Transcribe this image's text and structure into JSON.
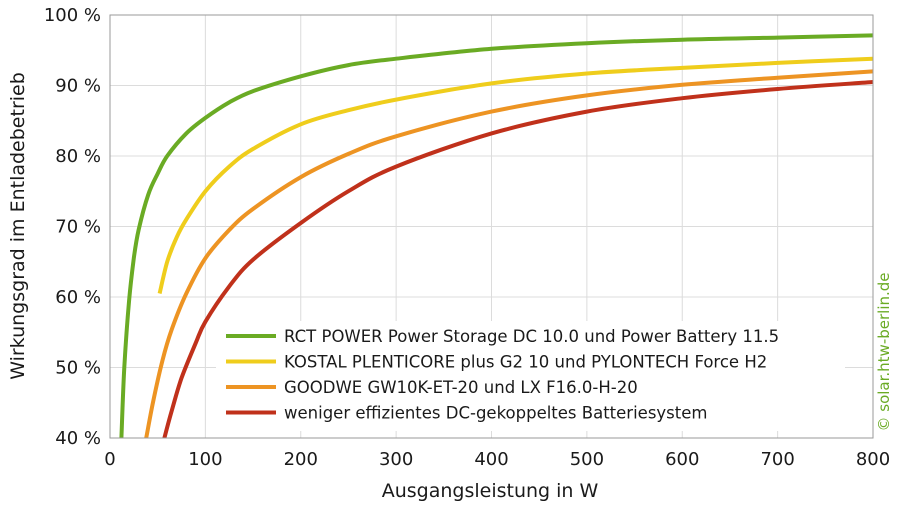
{
  "chart_data": {
    "type": "line",
    "xlabel": "Ausgangsleistung in W",
    "ylabel": "Wirkungsgrad im Entladebetrieb",
    "xlim": [
      0,
      800
    ],
    "ylim": [
      40,
      100
    ],
    "x_ticks": [
      0,
      100,
      200,
      300,
      400,
      500,
      600,
      700,
      800
    ],
    "x_tick_labels": [
      "0",
      "100",
      "200",
      "300",
      "400",
      "500",
      "600",
      "700",
      "800"
    ],
    "y_ticks": [
      40,
      50,
      60,
      70,
      80,
      90,
      100
    ],
    "y_tick_labels": [
      "40 %",
      "50 %",
      "60 %",
      "70 %",
      "80 %",
      "90 %",
      "100 %"
    ],
    "grid": true,
    "legend_position": "bottom-right",
    "series": [
      {
        "name": "RCT POWER Power Storage DC 10.0 und Power Battery 11.5",
        "color": "#6aab24",
        "x": [
          12,
          15,
          20,
          25,
          30,
          40,
          50,
          60,
          80,
          100,
          125,
          150,
          200,
          250,
          300,
          400,
          500,
          600,
          700,
          800
        ],
        "y": [
          40,
          50,
          59.5,
          65.5,
          69.5,
          74.5,
          77.5,
          80,
          83.2,
          85.4,
          87.6,
          89.2,
          91.3,
          92.9,
          93.8,
          95.2,
          96,
          96.5,
          96.8,
          97.1
        ]
      },
      {
        "name": "KOSTAL PLENTICORE plus G2 10 und PYLONTECH Force H2",
        "color": "#efcd1c",
        "x": [
          52,
          60,
          70,
          80,
          100,
          125,
          150,
          200,
          250,
          300,
          400,
          500,
          600,
          700,
          800
        ],
        "y": [
          60.5,
          65,
          68.5,
          71,
          75,
          78.5,
          81,
          84.5,
          86.5,
          88,
          90.3,
          91.7,
          92.5,
          93.2,
          93.8
        ]
      },
      {
        "name": "GOODWE GW10K-ET-20 und LX F16.0-H-20",
        "color": "#ed9423",
        "x": [
          38,
          45,
          55,
          65,
          80,
          100,
          125,
          150,
          200,
          250,
          300,
          400,
          500,
          600,
          700,
          800
        ],
        "y": [
          40,
          45,
          51,
          55.5,
          60.5,
          65.5,
          69.5,
          72.5,
          77,
          80.3,
          82.8,
          86.3,
          88.6,
          90.1,
          91.1,
          92
        ]
      },
      {
        "name": "weniger effizientes DC-gekoppeltes Batteriesystem",
        "color": "#c0311b",
        "x": [
          57,
          65,
          75,
          90,
          100,
          125,
          150,
          200,
          250,
          300,
          400,
          500,
          600,
          700,
          800
        ],
        "y": [
          40,
          44,
          48.5,
          53.5,
          56.5,
          61.5,
          65.3,
          70.5,
          75,
          78.5,
          83.2,
          86.3,
          88.2,
          89.5,
          90.5
        ]
      }
    ]
  },
  "credit": {
    "text": "© solar.htw-berlin.de",
    "color": "#6aab24"
  }
}
